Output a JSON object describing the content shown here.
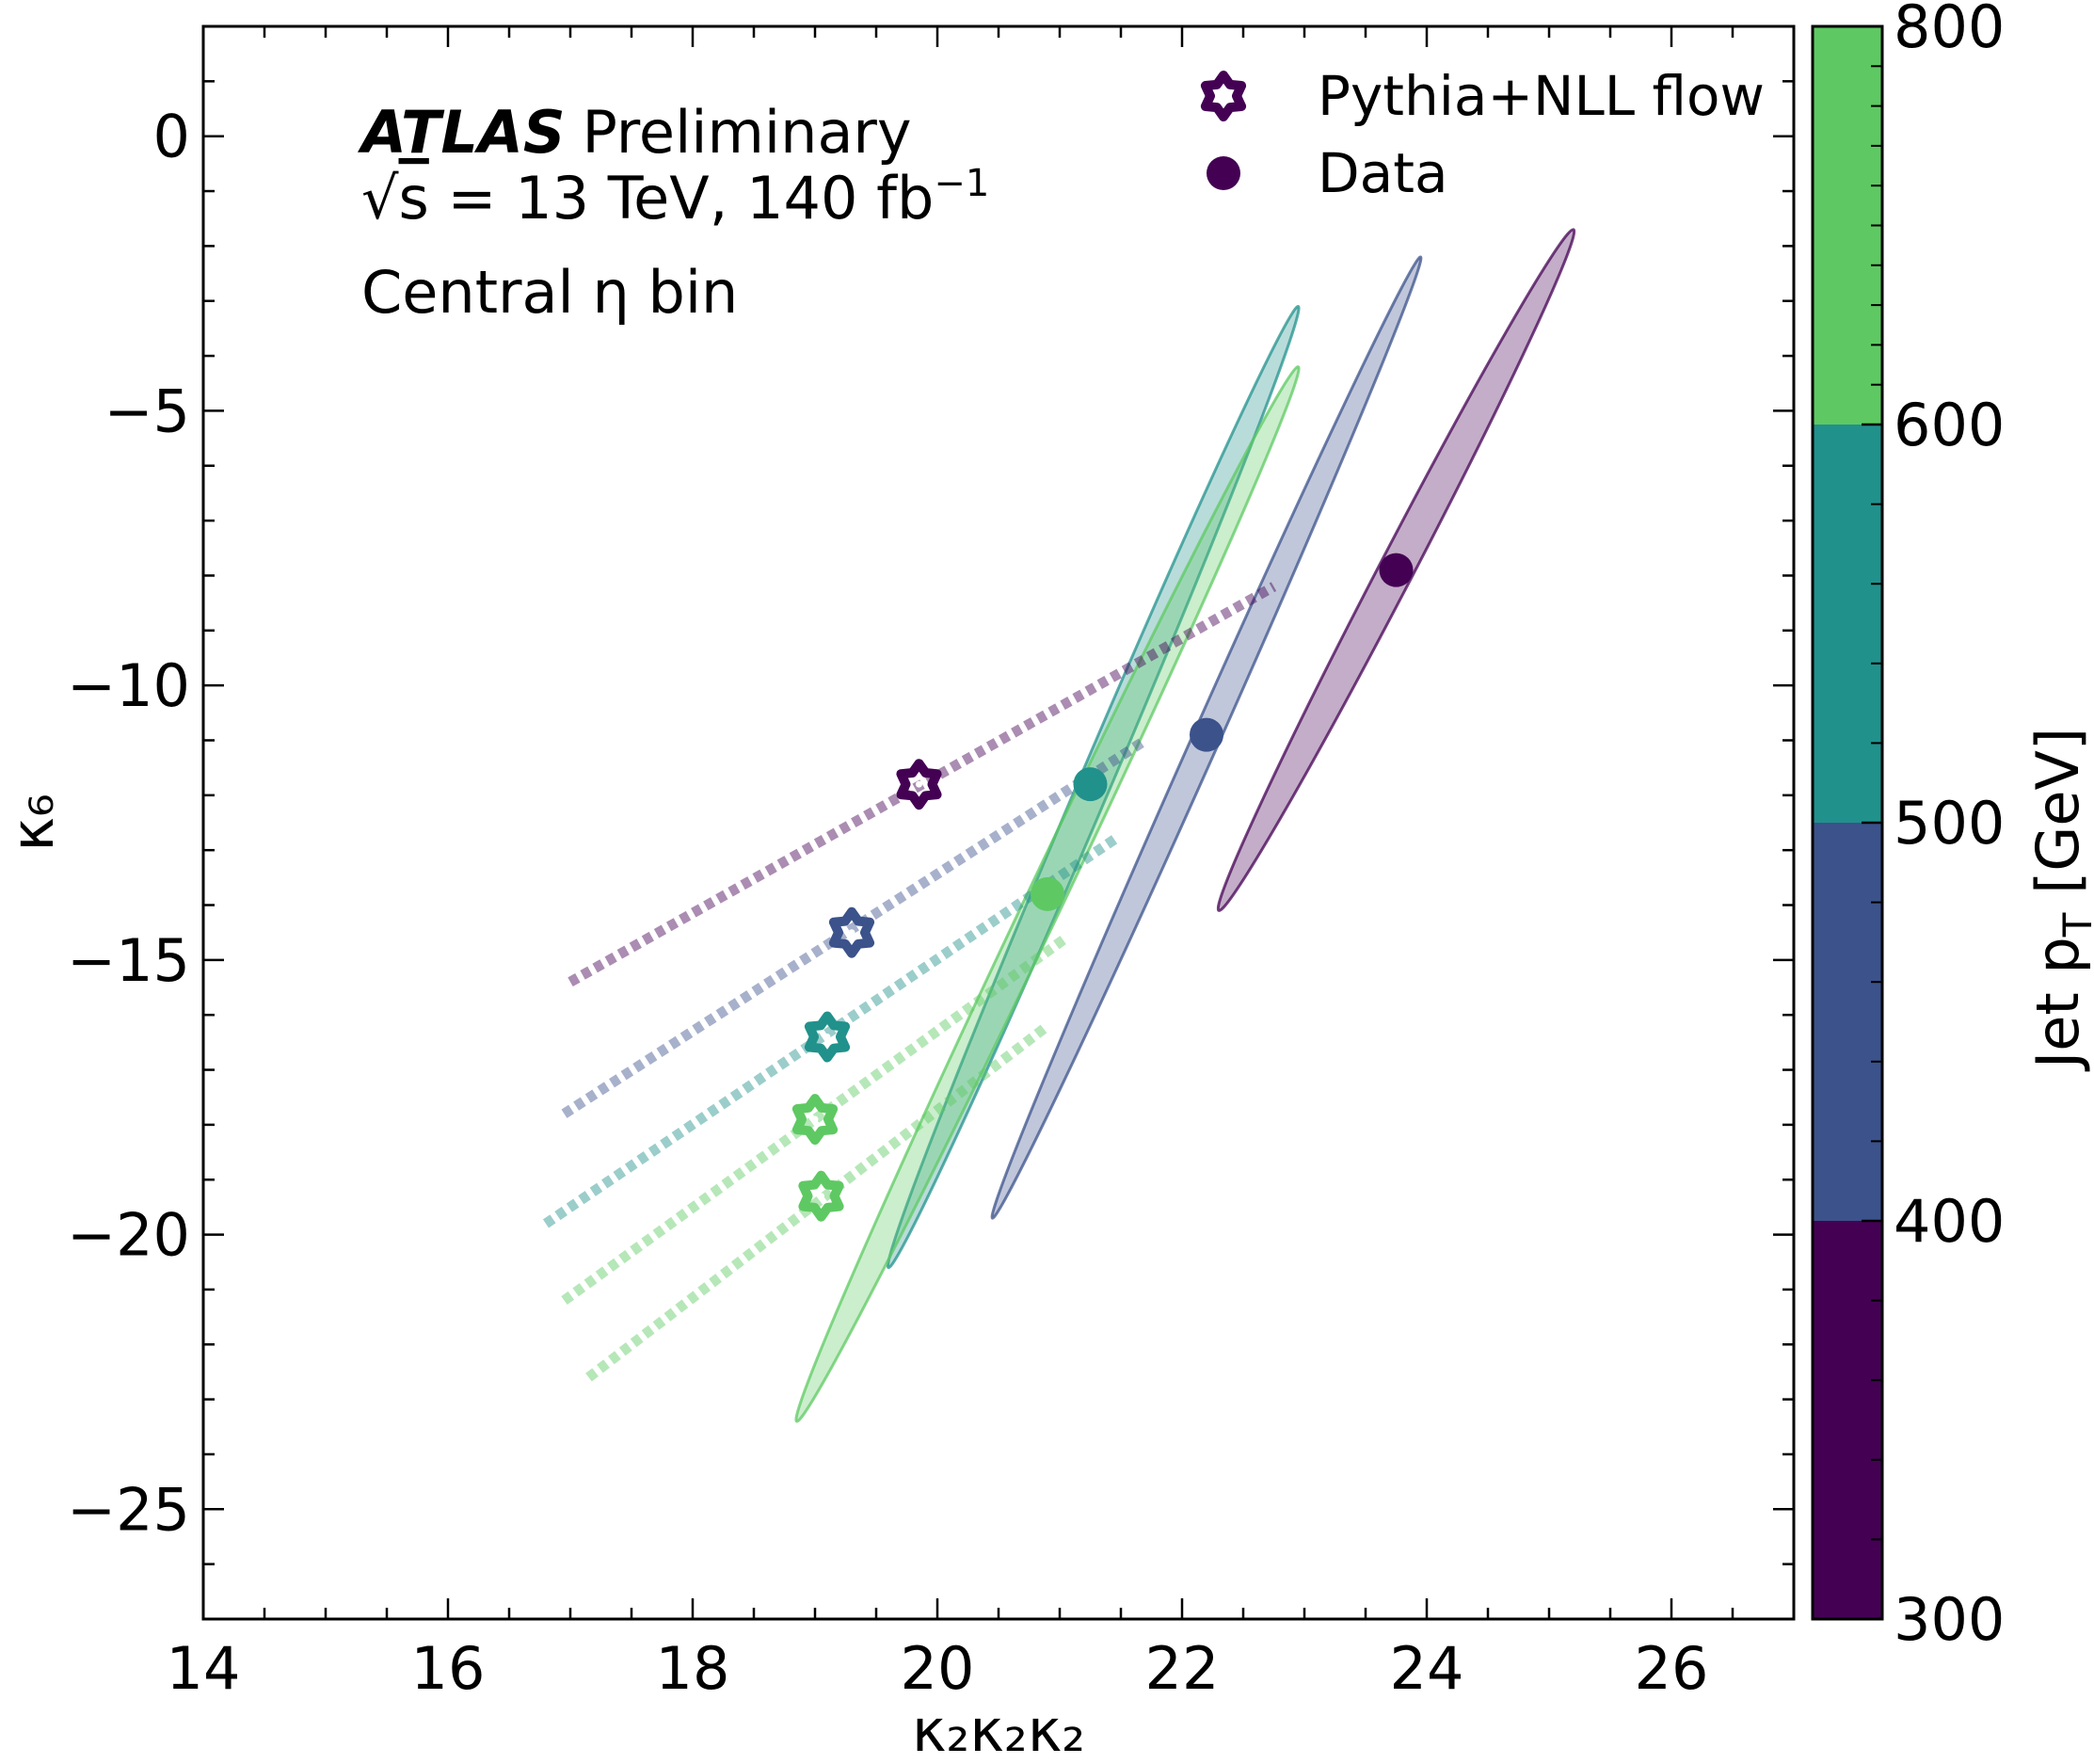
{
  "chart_data": {
    "type": "scatter",
    "xlabel": "κ₂κ₂κ₂",
    "ylabel": "κ₆",
    "xlim": [
      14,
      27
    ],
    "ylim": [
      -27,
      2
    ],
    "xticks": [
      14,
      16,
      18,
      20,
      22,
      24,
      26
    ],
    "xtick_labels": [
      "14",
      "16",
      "18",
      "20",
      "22",
      "24",
      "26"
    ],
    "yticks": [
      0,
      -5,
      -10,
      -15,
      -20,
      -25
    ],
    "ytick_labels": [
      "0",
      "−5",
      "−10",
      "−15",
      "−20",
      "−25"
    ],
    "grid": false,
    "legend_placement": "top-right",
    "annotations": {
      "experiment": "ATLAS",
      "status": "Preliminary",
      "energy_prefix": "√",
      "energy_s": "s",
      "energy_eq": " =  13 TeV, 140 fb",
      "energy_exp": "−1",
      "region": "Central η bin"
    },
    "legend": [
      {
        "label": "Pythia+NLL flow",
        "marker": "star-icon",
        "color": "#440154"
      },
      {
        "label": "Data",
        "marker": "circle-icon",
        "color": "#440154"
      }
    ],
    "colorbar": {
      "label": "Jet p",
      "label_sub": "T",
      "label_unit": " [GeV]",
      "ticks": [
        300,
        400,
        500,
        600,
        800
      ],
      "tick_labels": [
        "300",
        "400",
        "500",
        "600",
        "800"
      ],
      "bins": [
        {
          "from": 300,
          "to": 400,
          "color": "#440154"
        },
        {
          "from": 400,
          "to": 500,
          "color": "#3b528b"
        },
        {
          "from": 500,
          "to": 600,
          "color": "#21918c"
        },
        {
          "from": 600,
          "to": 800,
          "color": "#5ec962"
        }
      ]
    },
    "data_points": [
      {
        "bin": "300-400",
        "x": 23.75,
        "y": -7.9,
        "color": "#440154"
      },
      {
        "bin": "400-500",
        "x": 22.2,
        "y": -10.9,
        "color": "#3b528b"
      },
      {
        "bin": "500-600",
        "x": 21.25,
        "y": -11.8,
        "color": "#21918c"
      },
      {
        "bin": "600-800",
        "x": 20.9,
        "y": -13.8,
        "color": "#5ec962"
      }
    ],
    "data_ellipses": [
      {
        "bin": "300-400",
        "color": "#440154",
        "p1": [
          22.3,
          -14.1
        ],
        "p2": [
          25.2,
          -1.7
        ],
        "width": 0.14
      },
      {
        "bin": "400-500",
        "color": "#3b528b",
        "p1": [
          20.45,
          -19.7
        ],
        "p2": [
          23.95,
          -2.2
        ],
        "width": 0.11
      },
      {
        "bin": "500-600",
        "color": "#21918c",
        "p1": [
          19.6,
          -20.6
        ],
        "p2": [
          22.95,
          -3.1
        ],
        "width": 0.13
      },
      {
        "bin": "600-800",
        "color": "#5ec962",
        "p1": [
          18.85,
          -23.4
        ],
        "p2": [
          22.95,
          -4.2
        ],
        "width": 0.15
      }
    ],
    "simulation_points": [
      {
        "bin": "300-400",
        "x": 19.85,
        "y": -11.8,
        "color": "#440154"
      },
      {
        "bin": "400-500",
        "x": 19.3,
        "y": -14.5,
        "color": "#3b528b"
      },
      {
        "bin": "500-600",
        "x": 19.1,
        "y": -16.4,
        "color": "#21918c"
      },
      {
        "bin": "600-800 (a)",
        "x": 19.0,
        "y": -17.9,
        "color": "#5ec962"
      },
      {
        "bin": "600-800 (b)",
        "x": 19.05,
        "y": -19.3,
        "color": "#5ec962"
      }
    ],
    "simulation_bands": [
      {
        "bin": "300-400",
        "color": "#440154",
        "p1": [
          17.0,
          -15.4
        ],
        "p2": [
          22.75,
          -8.2
        ]
      },
      {
        "bin": "400-500",
        "color": "#3b528b",
        "p1": [
          16.95,
          -17.8
        ],
        "p2": [
          21.7,
          -11.0
        ]
      },
      {
        "bin": "500-600",
        "color": "#21918c",
        "p1": [
          16.8,
          -19.8
        ],
        "p2": [
          21.45,
          -12.8
        ]
      },
      {
        "bin": "600-800 (a)",
        "color": "#5ec962",
        "p1": [
          16.95,
          -21.2
        ],
        "p2": [
          21.05,
          -14.6
        ]
      },
      {
        "bin": "600-800 (b)",
        "color": "#5ec962",
        "p1": [
          17.15,
          -22.6
        ],
        "p2": [
          20.9,
          -16.2
        ]
      }
    ]
  }
}
